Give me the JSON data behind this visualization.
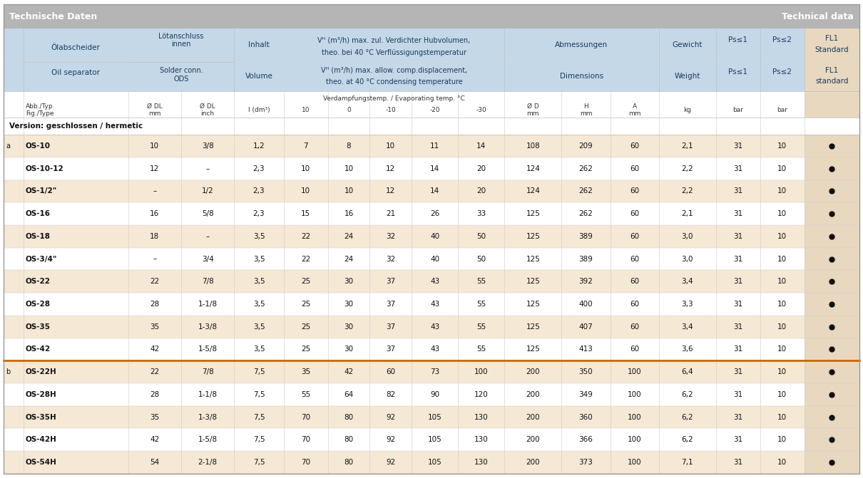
{
  "title_left": "Technische Daten",
  "title_right": "Technical data",
  "title_bg": "#b5b5b5",
  "title_fg": "#ffffff",
  "header_bg": "#c5d8e8",
  "header_fg": "#1a3a5c",
  "fl1_col_bg": "#e8d8c0",
  "row_bg_odd": "#f5e8d5",
  "row_bg_even": "#ffffff",
  "section_line_color": "#cc6600",
  "grid_color": "#bbbbbb",
  "text_dark": "#111111",
  "section_label": "Version: geschlossen / hermetic",
  "rows_a": [
    [
      "OS-10",
      "10",
      "3/8",
      "1,2",
      "7",
      "8",
      "10",
      "11",
      "14",
      "108",
      "209",
      "60",
      "2,1",
      "31",
      "10"
    ],
    [
      "OS-10-12",
      "12",
      "–",
      "2,3",
      "10",
      "10",
      "12",
      "14",
      "20",
      "124",
      "262",
      "60",
      "2,2",
      "31",
      "10"
    ],
    [
      "OS-1/2\"",
      "–",
      "1/2",
      "2,3",
      "10",
      "10",
      "12",
      "14",
      "20",
      "124",
      "262",
      "60",
      "2,2",
      "31",
      "10"
    ],
    [
      "OS-16",
      "16",
      "5/8",
      "2,3",
      "15",
      "16",
      "21",
      "26",
      "33",
      "125",
      "262",
      "60",
      "2,1",
      "31",
      "10"
    ],
    [
      "OS-18",
      "18",
      "–",
      "3,5",
      "22",
      "24",
      "32",
      "40",
      "50",
      "125",
      "389",
      "60",
      "3,0",
      "31",
      "10"
    ],
    [
      "OS-3/4\"",
      "–",
      "3/4",
      "3,5",
      "22",
      "24",
      "32",
      "40",
      "50",
      "125",
      "389",
      "60",
      "3,0",
      "31",
      "10"
    ],
    [
      "OS-22",
      "22",
      "7/8",
      "3,5",
      "25",
      "30",
      "37",
      "43",
      "55",
      "125",
      "392",
      "60",
      "3,4",
      "31",
      "10"
    ],
    [
      "OS-28",
      "28",
      "1-1/8",
      "3,5",
      "25",
      "30",
      "37",
      "43",
      "55",
      "125",
      "400",
      "60",
      "3,3",
      "31",
      "10"
    ],
    [
      "OS-35",
      "35",
      "1-3/8",
      "3,5",
      "25",
      "30",
      "37",
      "43",
      "55",
      "125",
      "407",
      "60",
      "3,4",
      "31",
      "10"
    ],
    [
      "OS-42",
      "42",
      "1-5/8",
      "3,5",
      "25",
      "30",
      "37",
      "43",
      "55",
      "125",
      "413",
      "60",
      "3,6",
      "31",
      "10"
    ]
  ],
  "rows_b": [
    [
      "OS-22H",
      "22",
      "7/8",
      "7,5",
      "35",
      "42",
      "60",
      "73",
      "100",
      "200",
      "350",
      "100",
      "6,4",
      "31",
      "10"
    ],
    [
      "OS-28H",
      "28",
      "1-1/8",
      "7,5",
      "55",
      "64",
      "82",
      "90",
      "120",
      "200",
      "349",
      "100",
      "6,2",
      "31",
      "10"
    ],
    [
      "OS-35H",
      "35",
      "1-3/8",
      "7,5",
      "70",
      "80",
      "92",
      "105",
      "130",
      "200",
      "360",
      "100",
      "6,2",
      "31",
      "10"
    ],
    [
      "OS-42H",
      "42",
      "1-5/8",
      "7,5",
      "70",
      "80",
      "92",
      "105",
      "130",
      "200",
      "366",
      "100",
      "6,2",
      "31",
      "10"
    ],
    [
      "OS-54H",
      "54",
      "2-1/8",
      "7,5",
      "70",
      "80",
      "92",
      "105",
      "130",
      "200",
      "373",
      "100",
      "7,1",
      "31",
      "10"
    ]
  ]
}
